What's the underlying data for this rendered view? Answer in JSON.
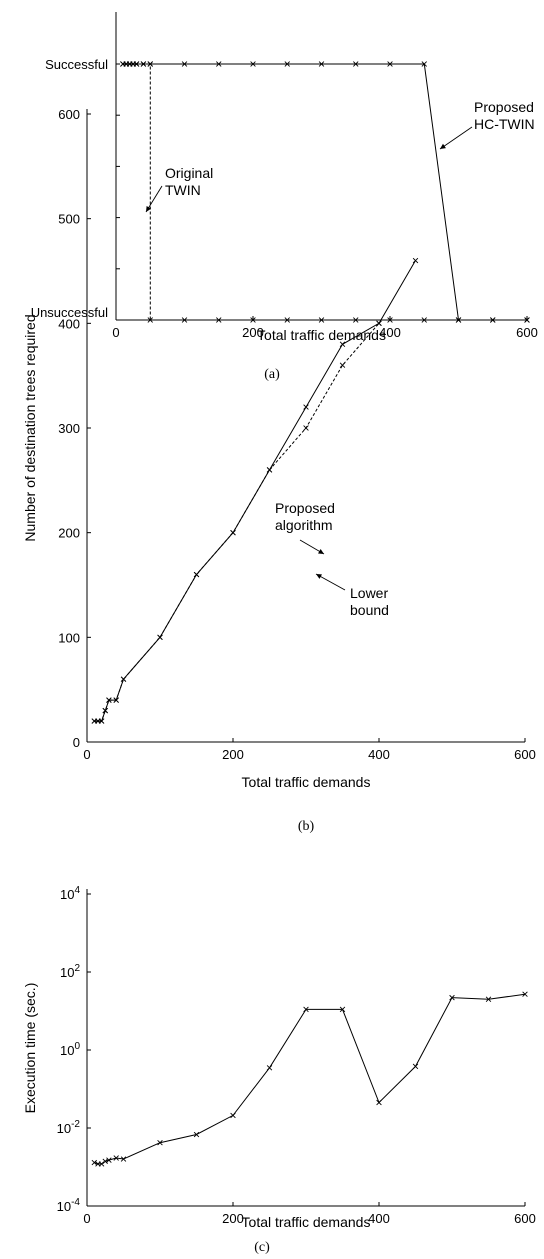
{
  "chart_data": [
    {
      "type": "line",
      "caption": "(a)",
      "xlabel": "Total traffic demands",
      "xlim": [
        0,
        600
      ],
      "xticks": [
        0,
        200,
        400,
        600
      ],
      "y_categories": [
        "Unsuccessful",
        "Successful"
      ],
      "grid": false,
      "series": [
        {
          "annotation": [
            "Original",
            "TWIN"
          ],
          "style": "dashed",
          "x": [
            10,
            15,
            20,
            25,
            30,
            40,
            50,
            50,
            100,
            150,
            200,
            250,
            300,
            350,
            400,
            450,
            500,
            550,
            600
          ],
          "y": [
            "Successful",
            "Successful",
            "Successful",
            "Successful",
            "Successful",
            "Successful",
            "Successful",
            "Unsuccessful",
            "Unsuccessful",
            "Unsuccessful",
            "Unsuccessful",
            "Unsuccessful",
            "Unsuccessful",
            "Unsuccessful",
            "Unsuccessful",
            "Unsuccessful",
            "Unsuccessful",
            "Unsuccessful",
            "Unsuccessful"
          ]
        },
        {
          "annotation": [
            "Proposed",
            "HC-TWIN"
          ],
          "style": "solid",
          "x": [
            10,
            15,
            20,
            25,
            30,
            40,
            50,
            100,
            150,
            200,
            250,
            300,
            350,
            400,
            450,
            500,
            550,
            600
          ],
          "y": [
            "Successful",
            "Successful",
            "Successful",
            "Successful",
            "Successful",
            "Successful",
            "Successful",
            "Successful",
            "Successful",
            "Successful",
            "Successful",
            "Successful",
            "Successful",
            "Successful",
            "Successful",
            "Unsuccessful",
            "Unsuccessful",
            "Unsuccessful"
          ]
        }
      ]
    },
    {
      "type": "line",
      "caption": "(b)",
      "xlabel": "Total traffic demands",
      "ylabel": "Number of destination trees required",
      "xlim": [
        0,
        600
      ],
      "ylim": [
        0,
        600
      ],
      "xticks": [
        0,
        200,
        400,
        600
      ],
      "yticks": [
        0,
        100,
        200,
        300,
        400,
        500,
        600
      ],
      "grid": false,
      "series": [
        {
          "annotation": [
            "Proposed",
            "algorithm"
          ],
          "style": "solid",
          "x": [
            10,
            15,
            20,
            25,
            30,
            40,
            50,
            100,
            150,
            200,
            250,
            300,
            350,
            400,
            450
          ],
          "y": [
            20,
            20,
            20,
            30,
            40,
            40,
            60,
            100,
            160,
            200,
            260,
            320,
            380,
            400,
            460
          ]
        },
        {
          "annotation": [
            "Lower",
            "bound"
          ],
          "style": "dashed",
          "x": [
            10,
            15,
            20,
            25,
            30,
            40,
            50,
            100,
            150,
            200,
            250,
            300,
            350,
            400
          ],
          "y": [
            20,
            20,
            20,
            30,
            40,
            40,
            60,
            100,
            160,
            200,
            260,
            300,
            360,
            400
          ]
        }
      ]
    },
    {
      "type": "line",
      "caption": "(c)",
      "xlabel": "Total traffic demands",
      "ylabel": "Execution time (sec.)",
      "xlim": [
        0,
        600
      ],
      "xticks": [
        0,
        200,
        400,
        600
      ],
      "yscale": "log",
      "ylim": [
        0.0001,
        10000
      ],
      "yticks": [
        {
          "base": "10",
          "exp": "-4",
          "value": 0.0001
        },
        {
          "base": "10",
          "exp": "-2",
          "value": 0.01
        },
        {
          "base": "10",
          "exp": "0",
          "value": 1
        },
        {
          "base": "10",
          "exp": "2",
          "value": 100
        },
        {
          "base": "10",
          "exp": "4",
          "value": 10000
        }
      ],
      "grid": false,
      "series": [
        {
          "style": "solid",
          "x": [
            10,
            15,
            20,
            25,
            30,
            40,
            50,
            100,
            150,
            200,
            250,
            300,
            350,
            400,
            450,
            500,
            550,
            600
          ],
          "y": [
            0.0013,
            0.0012,
            0.0012,
            0.0014,
            0.0015,
            0.0017,
            0.0016,
            0.0042,
            0.0068,
            0.021,
            0.35,
            11,
            11,
            0.045,
            0.38,
            22,
            20,
            27
          ]
        }
      ]
    }
  ]
}
